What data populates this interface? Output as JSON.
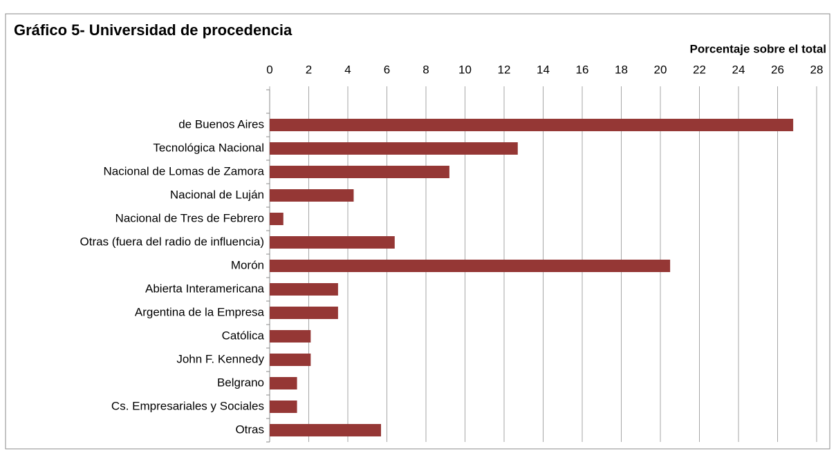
{
  "chart_data": {
    "type": "bar",
    "orientation": "horizontal",
    "title": "Gráfico 5- Universidad de procedencia",
    "x_label": "Porcentaje sobre el total",
    "categories": [
      null,
      "de Buenos Aires",
      "Tecnológica Nacional",
      "Nacional de Lomas de Zamora",
      "Nacional de Luján",
      "Nacional de Tres de Febrero",
      "Otras (fuera del radio de influencia)",
      "Morón",
      "Abierta Interamericana",
      "Argentina de la Empresa",
      "Católica",
      "John F. Kennedy",
      "Belgrano",
      "Cs. Empresariales y Sociales",
      "Otras"
    ],
    "values": [
      null,
      26.8,
      12.7,
      9.2,
      4.3,
      0.7,
      6.4,
      20.5,
      3.5,
      3.5,
      2.1,
      2.1,
      1.4,
      1.4,
      5.7
    ],
    "color": "#953735",
    "xlim": [
      0,
      28
    ],
    "xticks": [
      0,
      2,
      4,
      6,
      8,
      10,
      12,
      14,
      16,
      18,
      20,
      22,
      24,
      26,
      28
    ],
    "grid": true
  }
}
